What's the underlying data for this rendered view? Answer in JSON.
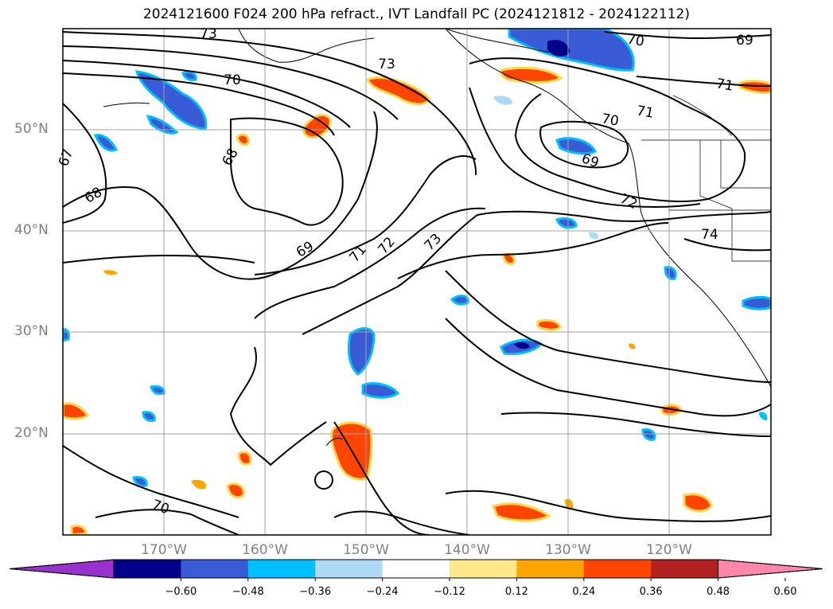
{
  "title": "2024121600 F024 200 hPa refract., IVT Landfall PC (2024121812 - 2024122112)",
  "lat_labels": [
    "50°N",
    "40°N",
    "30°N",
    "20°N"
  ],
  "lat_values": [
    50,
    40,
    30,
    20
  ],
  "lon_labels": [
    "170°W",
    "160°W",
    "150°W",
    "140°W",
    "130°W",
    "120°W"
  ],
  "lon_values": [
    -170,
    -160,
    -150,
    -140,
    -130,
    -120
  ],
  "contour_labels": [
    "73",
    "70",
    "73",
    "68",
    "67",
    "68",
    "69",
    "71",
    "72",
    "73",
    "70",
    "71",
    "71",
    "70",
    "69",
    "72",
    "74",
    "69",
    "70"
  ],
  "colorbar": {
    "levels": [
      -0.6,
      -0.48,
      -0.36,
      -0.24,
      -0.12,
      0.12,
      0.24,
      0.36,
      0.48,
      0.6
    ],
    "tick_labels": [
      "−0.60",
      "−0.48",
      "−0.36",
      "−0.24",
      "−0.12",
      "0.12",
      "0.24",
      "0.36",
      "0.48",
      "0.60"
    ],
    "colors": [
      "#9932cc",
      "#00008b",
      "#3a5bd6",
      "#00bfff",
      "#add8f6",
      "#ffffff",
      "#ffe88a",
      "#ffa500",
      "#ff4500",
      "#b22222",
      "#ff88aa"
    ]
  }
}
